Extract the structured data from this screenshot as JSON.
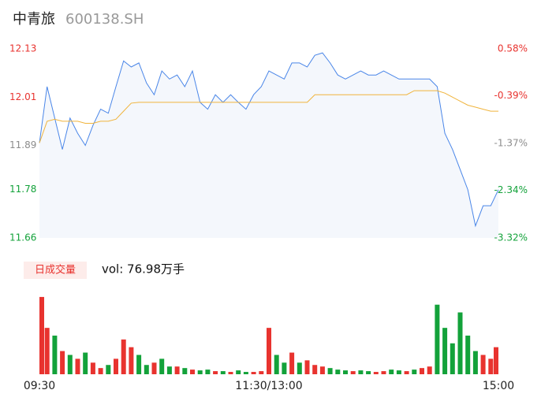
{
  "header": {
    "name": "中青旅",
    "code": "600138.SH"
  },
  "chart_data": [
    {
      "type": "line",
      "x": [
        0,
        4,
        8,
        12,
        16,
        20,
        24,
        28,
        32,
        36,
        40,
        44,
        48,
        52,
        56,
        60,
        64,
        68,
        72,
        76,
        80,
        84,
        88,
        92,
        96,
        100,
        104,
        108,
        112,
        116,
        120,
        124,
        128,
        132,
        136,
        140,
        144,
        148,
        152,
        156,
        160,
        164,
        168,
        172,
        176,
        180,
        184,
        188,
        192,
        196,
        200,
        204,
        208,
        212,
        216,
        220,
        224,
        228,
        232,
        236,
        240
      ],
      "series": [
        {
          "name": "price",
          "color": "#4a86e8",
          "values": [
            11.896,
            12.036,
            11.958,
            11.88,
            11.958,
            11.92,
            11.89,
            11.94,
            11.98,
            11.97,
            12.036,
            12.1,
            12.085,
            12.095,
            12.045,
            12.016,
            12.075,
            12.055,
            12.065,
            12.036,
            12.075,
            11.997,
            11.98,
            12.016,
            11.997,
            12.016,
            11.997,
            11.98,
            12.016,
            12.036,
            12.075,
            12.065,
            12.055,
            12.095,
            12.095,
            12.085,
            12.114,
            12.12,
            12.095,
            12.065,
            12.055,
            12.065,
            12.075,
            12.065,
            12.065,
            12.075,
            12.065,
            12.055,
            12.055,
            12.055,
            12.055,
            12.055,
            12.036,
            11.92,
            11.88,
            11.83,
            11.78,
            11.69,
            11.74,
            11.74,
            11.78
          ]
        },
        {
          "name": "avg",
          "color": "#f0b43c",
          "values": [
            11.896,
            11.95,
            11.955,
            11.95,
            11.95,
            11.95,
            11.945,
            11.945,
            11.95,
            11.95,
            11.955,
            11.975,
            11.995,
            11.997,
            11.997,
            11.997,
            11.997,
            11.997,
            11.997,
            11.997,
            11.997,
            11.997,
            11.997,
            11.997,
            11.997,
            11.997,
            11.997,
            11.997,
            11.997,
            11.997,
            11.997,
            11.997,
            11.997,
            11.997,
            11.997,
            11.997,
            12.016,
            12.016,
            12.016,
            12.016,
            12.016,
            12.016,
            12.016,
            12.016,
            12.016,
            12.016,
            12.016,
            12.016,
            12.016,
            12.026,
            12.026,
            12.026,
            12.026,
            12.02,
            12.01,
            12.0,
            11.99,
            11.985,
            11.98,
            11.975,
            11.975
          ]
        }
      ],
      "xlim": [
        0,
        240
      ],
      "ylim": [
        11.66,
        12.13
      ],
      "yticks": [
        12.13,
        12.01,
        11.89,
        11.78,
        11.66
      ],
      "ytick_colors": [
        "#e8332f",
        "#e8332f",
        "#8c8c8c",
        "#13a23a",
        "#13a23a"
      ],
      "y2lim": [
        -3.32,
        0.58
      ],
      "y2ticks": [
        {
          "value": 0.58,
          "label": "0.58%"
        },
        {
          "value": -0.39,
          "label": "-0.39%"
        },
        {
          "value": -1.37,
          "label": "-1.37%"
        },
        {
          "value": -2.34,
          "label": "-2.34%"
        },
        {
          "value": -3.32,
          "label": "-3.32%"
        }
      ],
      "area_color": "#f4f7fc"
    },
    {
      "type": "volume",
      "legend_label": "日成交量",
      "vol_label": "vol: 76.98万手",
      "x": [
        0,
        4,
        8,
        12,
        16,
        20,
        24,
        28,
        32,
        36,
        40,
        44,
        48,
        52,
        56,
        60,
        64,
        68,
        72,
        76,
        80,
        84,
        88,
        92,
        96,
        100,
        104,
        108,
        112,
        116,
        120,
        124,
        128,
        132,
        136,
        140,
        144,
        148,
        152,
        156,
        160,
        164,
        168,
        172,
        176,
        180,
        184,
        188,
        192,
        196,
        200,
        204,
        208,
        212,
        216,
        220,
        224,
        228,
        232,
        236,
        240
      ],
      "xlim": [
        0,
        240
      ],
      "ylim": [
        0,
        1.05
      ],
      "xticks": [
        {
          "value": 0,
          "label": "09:30"
        },
        {
          "value": 120,
          "label": "11:30/13:00"
        },
        {
          "value": 240,
          "label": "15:00"
        }
      ],
      "values": [
        1.0,
        0.6,
        0.5,
        0.3,
        0.25,
        0.2,
        0.28,
        0.15,
        0.08,
        0.12,
        0.2,
        0.45,
        0.35,
        0.25,
        0.12,
        0.15,
        0.2,
        0.1,
        0.1,
        0.08,
        0.06,
        0.05,
        0.06,
        0.04,
        0.04,
        0.03,
        0.05,
        0.03,
        0.03,
        0.04,
        0.6,
        0.25,
        0.15,
        0.28,
        0.15,
        0.18,
        0.12,
        0.1,
        0.08,
        0.06,
        0.05,
        0.04,
        0.05,
        0.04,
        0.03,
        0.04,
        0.06,
        0.05,
        0.04,
        0.06,
        0.08,
        0.1,
        0.9,
        0.6,
        0.4,
        0.8,
        0.5,
        0.3,
        0.25,
        0.2,
        0.35
      ],
      "colors": [
        "#e8332f",
        "#e8332f",
        "#13a23a",
        "#e8332f",
        "#13a23a",
        "#e8332f",
        "#13a23a",
        "#e8332f",
        "#e8332f",
        "#13a23a",
        "#e8332f",
        "#e8332f",
        "#e8332f",
        "#13a23a",
        "#13a23a",
        "#e8332f",
        "#13a23a",
        "#13a23a",
        "#e8332f",
        "#13a23a",
        "#e8332f",
        "#13a23a",
        "#13a23a",
        "#e8332f",
        "#13a23a",
        "#e8332f",
        "#13a23a",
        "#13a23a",
        "#e8332f",
        "#e8332f",
        "#e8332f",
        "#13a23a",
        "#13a23a",
        "#e8332f",
        "#13a23a",
        "#e8332f",
        "#e8332f",
        "#e8332f",
        "#13a23a",
        "#13a23a",
        "#13a23a",
        "#e8332f",
        "#13a23a",
        "#13a23a",
        "#e8332f",
        "#e8332f",
        "#13a23a",
        "#13a23a",
        "#e8332f",
        "#13a23a",
        "#e8332f",
        "#e8332f",
        "#13a23a",
        "#13a23a",
        "#13a23a",
        "#13a23a",
        "#13a23a",
        "#13a23a",
        "#e8332f",
        "#e8332f",
        "#e8332f"
      ]
    }
  ]
}
